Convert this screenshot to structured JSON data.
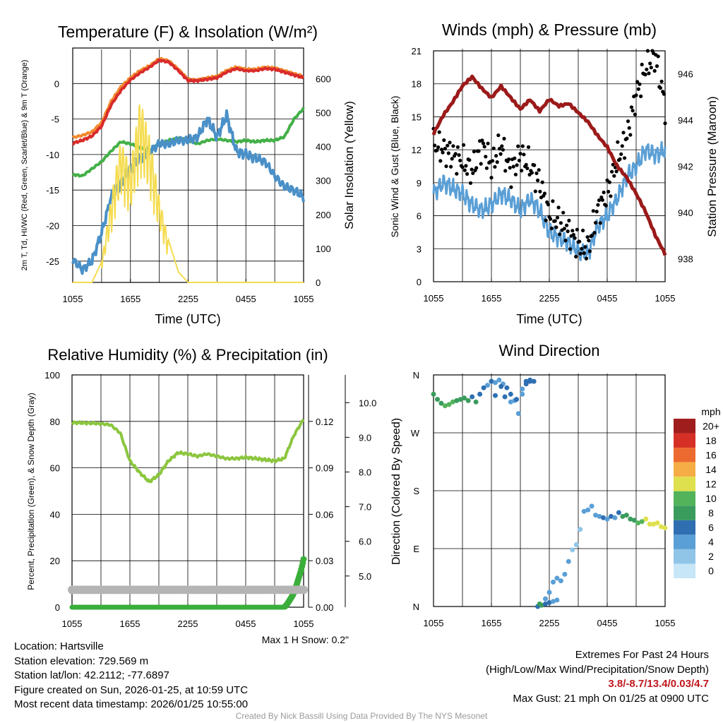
{
  "chart_data": [
    {
      "type": "line",
      "title": "Temperature (F) & Insolation (W/m²)",
      "xlabel": "Time (UTC)",
      "ylabel_left": "2m T, Td, HI/WC (Red, Green, Scarlet/Blue) & 9m T (Orange)",
      "ylabel_right": "Solar Insolation (Yellow)",
      "x_ticks": [
        "1055",
        "1655",
        "2255",
        "0455",
        "1055"
      ],
      "ylim_left": [
        -28,
        5
      ],
      "yticks_left": [
        "0",
        "-5",
        "-10",
        "-15",
        "-20",
        "-25"
      ],
      "ylim_right": [
        0,
        690
      ],
      "yticks_right": [
        "600",
        "500",
        "400",
        "300",
        "200",
        "100",
        "0"
      ],
      "series": [
        {
          "name": "9m T",
          "color": "#f28a2e",
          "axis": "left",
          "x": [
            0,
            1,
            2,
            3,
            4,
            5,
            6,
            7,
            8,
            9,
            10,
            11,
            12,
            13,
            14,
            15,
            16,
            17,
            18,
            19,
            20,
            21,
            22,
            23,
            24
          ],
          "values": [
            -7.6,
            -7.3,
            -6.8,
            -5.5,
            -2.5,
            -0.5,
            0.8,
            1.8,
            2.5,
            3.5,
            3.2,
            2.0,
            0.6,
            0.5,
            0.8,
            1.0,
            1.8,
            2.3,
            2.0,
            2.0,
            2.3,
            2.2,
            1.8,
            1.4,
            1.0
          ]
        },
        {
          "name": "2m T",
          "color": "#d92b2b",
          "axis": "left",
          "x": [
            0,
            1,
            2,
            3,
            4,
            5,
            6,
            7,
            8,
            9,
            10,
            11,
            12,
            13,
            14,
            15,
            16,
            17,
            18,
            19,
            20,
            21,
            22,
            23,
            24
          ],
          "values": [
            -8.4,
            -8.0,
            -7.4,
            -6.0,
            -3.0,
            -1.0,
            0.5,
            1.5,
            2.3,
            3.3,
            3.0,
            1.8,
            0.4,
            0.4,
            0.6,
            0.8,
            1.6,
            2.1,
            1.8,
            1.8,
            2.1,
            2.0,
            1.6,
            1.2,
            0.8
          ]
        },
        {
          "name": "Td",
          "color": "#43b047",
          "axis": "left",
          "x": [
            0,
            1,
            2,
            3,
            4,
            5,
            6,
            7,
            8,
            9,
            10,
            11,
            12,
            13,
            14,
            15,
            16,
            17,
            18,
            19,
            20,
            21,
            22,
            23,
            24
          ],
          "values": [
            -12.8,
            -13.0,
            -12.0,
            -11.0,
            -9.5,
            -8.2,
            -8.5,
            -9.0,
            -9.5,
            -8.5,
            -8.0,
            -7.7,
            -8.0,
            -8.5,
            -8.0,
            -7.8,
            -8.0,
            -8.2,
            -8.0,
            -8.2,
            -8.0,
            -8.0,
            -7.5,
            -5.0,
            -3.5
          ]
        },
        {
          "name": "WC",
          "color": "#4a90c8",
          "axis": "left",
          "x": [
            0,
            1,
            2,
            3,
            4,
            5,
            6,
            7,
            8,
            9,
            10,
            11,
            12,
            13,
            14,
            15,
            16,
            17,
            18,
            19,
            20,
            21,
            22,
            23,
            24
          ],
          "values": [
            -24.8,
            -26.2,
            -25.0,
            -21.0,
            -16.0,
            -14.0,
            -12.0,
            -10.5,
            -9.5,
            -8.5,
            -8.5,
            -8.0,
            -8.0,
            -7.5,
            -5.0,
            -7.5,
            -4.5,
            -9.5,
            -10.0,
            -10.5,
            -11.0,
            -13.0,
            -14.5,
            -15.0,
            -16.0
          ]
        },
        {
          "name": "Solar Insolation",
          "color": "#f5dc50",
          "axis": "right",
          "x": [
            0,
            1,
            2,
            3,
            4,
            5,
            6,
            7,
            8,
            9,
            10,
            11,
            12,
            13,
            14,
            15,
            16,
            17,
            18,
            19,
            20,
            21,
            22,
            23,
            24
          ],
          "values": [
            0,
            0,
            0,
            60,
            250,
            420,
            340,
            540,
            430,
            250,
            120,
            30,
            0,
            0,
            0,
            0,
            0,
            0,
            0,
            0,
            0,
            0,
            0,
            0,
            0
          ]
        }
      ]
    },
    {
      "type": "line",
      "title": "Winds (mph) & Pressure (mb)",
      "xlabel": "Time (UTC)",
      "ylabel_left": "Sonic Wind & Gust (Blue, Black)",
      "ylabel_right": "Station Pressure (Maroon)",
      "x_ticks": [
        "1055",
        "1655",
        "2255",
        "0455",
        "1055"
      ],
      "ylim_left": [
        0,
        21
      ],
      "yticks_left": [
        "0",
        "3",
        "6",
        "9",
        "12",
        "15",
        "18",
        "21"
      ],
      "ylim_right": [
        937.0,
        947.0
      ],
      "yticks_right": [
        "938",
        "940",
        "942",
        "944",
        "946"
      ],
      "series": [
        {
          "name": "Sonic Wind",
          "color": "#5a9fd6",
          "axis": "left",
          "x": [
            0,
            1,
            2,
            3,
            4,
            5,
            6,
            7,
            8,
            9,
            10,
            11,
            12,
            13,
            14,
            15,
            16,
            17,
            18,
            19,
            20,
            21,
            22,
            23,
            24
          ],
          "values": [
            8.0,
            9.0,
            8.5,
            8.0,
            7.0,
            6.5,
            7.0,
            8.0,
            7.5,
            6.5,
            7.5,
            6.5,
            4.5,
            4.0,
            3.5,
            2.8,
            2.5,
            5.0,
            6.0,
            7.5,
            9.5,
            10.5,
            12.0,
            11.5,
            12.0
          ]
        },
        {
          "name": "Gust",
          "color": "#000000",
          "axis": "left",
          "style": "dots",
          "x": [
            0,
            1,
            2,
            3,
            4,
            5,
            6,
            7,
            8,
            9,
            10,
            11,
            12,
            13,
            14,
            15,
            16,
            17,
            18,
            19,
            20,
            21,
            22,
            23,
            24
          ],
          "values": [
            12.5,
            12.0,
            11.5,
            11.0,
            10.0,
            12.5,
            10.5,
            12.5,
            10.0,
            11.5,
            10.5,
            9.0,
            6.0,
            5.5,
            4.5,
            3.5,
            3.0,
            6.5,
            8.0,
            11.0,
            13.0,
            17.0,
            19.5,
            20.5,
            16.0
          ]
        },
        {
          "name": "Station Pressure",
          "color": "#9b1a1a",
          "axis": "right",
          "x": [
            0,
            1,
            2,
            3,
            4,
            5,
            6,
            7,
            8,
            9,
            10,
            11,
            12,
            13,
            14,
            15,
            16,
            17,
            18,
            19,
            20,
            21,
            22,
            23,
            24
          ],
          "values": [
            943.4,
            944.2,
            944.8,
            945.5,
            945.9,
            945.4,
            945.0,
            945.5,
            945.0,
            944.5,
            944.9,
            944.4,
            944.9,
            944.6,
            944.7,
            944.3,
            943.9,
            943.3,
            942.8,
            942.0,
            941.5,
            940.8,
            940.0,
            939.0,
            938.2
          ]
        }
      ]
    },
    {
      "type": "line",
      "title": "Relative Humidity (%) & Precipitation (in)",
      "xlabel": "",
      "ylabel_left": "Percent, Precipitation (Green), & Snow Depth (Gray)",
      "x_ticks": [
        "1055",
        "1655",
        "2255",
        "0455",
        "1055"
      ],
      "ylim_left": [
        0,
        100
      ],
      "yticks_left": [
        "0",
        "20",
        "40",
        "60",
        "80",
        "100"
      ],
      "axis_precip": {
        "ylim": [
          0,
          0.15
        ],
        "ticks": [
          "0.00",
          "0.03",
          "0.06",
          "0.09",
          "0.12"
        ]
      },
      "axis_snow": {
        "ylim": [
          4.1,
          10.8
        ],
        "ticks": [
          "5.0",
          "6.0",
          "7.0",
          "8.0",
          "9.0",
          "10.0"
        ]
      },
      "annotation": "Max 1 H Snow: 0.2\"",
      "series": [
        {
          "name": "Relative Humidity",
          "color": "#8cc63f",
          "axis": "left",
          "x": [
            0,
            2,
            3,
            4,
            5,
            6,
            7,
            8,
            9,
            10,
            11,
            12,
            13,
            14,
            15,
            16,
            17,
            18,
            19,
            20,
            21,
            22,
            23,
            24
          ],
          "values": [
            79.5,
            79.2,
            79.0,
            78.5,
            75.0,
            63.0,
            58.0,
            54.0,
            57.0,
            63.0,
            66.5,
            66.0,
            65.0,
            66.0,
            65.0,
            64.0,
            64.0,
            64.5,
            64.0,
            63.5,
            63.0,
            64.0,
            74.0,
            81.0
          ]
        },
        {
          "name": "Precipitation",
          "color": "#3aae3a",
          "axis": "precip",
          "style": "dots",
          "x": [
            0,
            4,
            8,
            12,
            16,
            20,
            22.0,
            22.3,
            22.6,
            22.9,
            23.1,
            23.3,
            23.5,
            23.7,
            23.9,
            24.0
          ],
          "values": [
            0,
            0,
            0,
            0,
            0,
            0,
            0,
            0.002,
            0.005,
            0.008,
            0.011,
            0.015,
            0.019,
            0.023,
            0.028,
            0.031
          ]
        },
        {
          "name": "Snow Depth",
          "color": "#b4b4b4",
          "axis": "snow",
          "x": [
            0,
            24
          ],
          "values": [
            4.6,
            4.6
          ]
        }
      ]
    },
    {
      "type": "scatter",
      "title": "Wind Direction",
      "ylabel": "Direction (Colored By Speed)",
      "x_ticks": [
        "1055",
        "1655",
        "2255",
        "0455",
        "1055"
      ],
      "y_ticks": [
        "N",
        "E",
        "S",
        "W",
        "N"
      ],
      "ylim": [
        0,
        360
      ],
      "legend_title": "mph",
      "legend_labels": [
        "0",
        "2",
        "4",
        "6",
        "8",
        "10",
        "12",
        "14",
        "16",
        "18",
        "20+"
      ],
      "legend_colors": [
        "#c7e6f7",
        "#90c5e8",
        "#5a9fd6",
        "#2f6fb1",
        "#3a9c5c",
        "#52b35b",
        "#dfe04d",
        "#f6ad45",
        "#ec6a2f",
        "#d63026",
        "#a01d1d"
      ],
      "series": [
        {
          "name": "Wind Direction",
          "x": [
            0.0,
            0.4,
            0.8,
            1.2,
            1.6,
            2.0,
            2.4,
            2.8,
            3.2,
            3.6,
            4.0,
            4.4,
            4.8,
            5.2,
            5.6,
            6.0,
            6.4,
            6.8,
            7.2,
            7.6,
            8.0,
            8.4,
            8.8,
            9.2,
            9.6,
            10.0,
            10.4,
            10.8,
            11.2,
            11.6,
            12.0,
            12.4,
            12.8,
            13.2,
            13.6,
            14.0,
            14.4,
            14.8,
            15.2,
            15.6,
            16.0,
            16.4,
            16.8,
            17.2,
            17.6,
            18.0,
            18.4,
            18.8,
            19.2,
            19.6,
            20.0,
            20.4,
            20.8,
            21.2,
            21.6,
            22.0,
            22.4,
            22.8,
            23.2,
            23.6,
            24.0,
            6.4,
            7.0,
            7.4,
            8.0,
            8.6,
            9.2,
            9.6,
            10.0,
            11.0,
            11.6,
            12.0,
            12.4,
            12.8
          ],
          "values": [
            330,
            322,
            316,
            312,
            314,
            318,
            320,
            322,
            324,
            320,
            326,
            318,
            330,
            340,
            344,
            350,
            348,
            352,
            346,
            340,
            330,
            320,
            300,
            330,
            350,
            352,
            350,
            0,
            2,
            4,
            6,
            8,
            10,
            40,
            50,
            70,
            88,
            96,
            120,
            148,
            150,
            156,
            142,
            140,
            138,
            136,
            140,
            138,
            146,
            140,
            142,
            136,
            134,
            130,
            132,
            136,
            128,
            128,
            130,
            124,
            122,
            328,
            342,
            326,
            318,
            322,
            338,
            346,
            350,
            4,
            12,
            22,
            38,
            44
          ],
          "speeds": [
            7,
            8,
            8,
            10,
            10,
            9,
            8,
            7,
            8,
            7,
            6,
            7,
            6,
            5,
            4,
            5,
            4,
            3,
            4,
            5,
            5,
            4,
            3,
            4,
            5,
            6,
            6,
            5,
            8,
            6,
            5,
            3,
            3,
            4,
            3,
            3,
            2,
            2,
            2,
            3,
            3,
            4,
            3,
            4,
            5,
            4,
            5,
            4,
            6,
            7,
            7,
            8,
            8,
            9,
            10,
            11,
            12,
            11,
            12,
            12,
            11,
            6,
            5,
            6,
            4,
            5,
            3,
            5,
            6,
            7,
            4,
            3,
            3,
            3
          ]
        }
      ]
    }
  ],
  "info_left": {
    "location": "Location: Hartsville",
    "elevation": "Station elevation: 729.569 m",
    "latlon": "Station lat/lon: 42.2112; -77.6897",
    "created": "Figure created on Sun, 2026-01-25, at 10:59 UTC",
    "recent": "Most recent data timestamp: 2026/01/25 10:55:00"
  },
  "info_right": {
    "title": "Extremes For Past 24 Hours",
    "subtitle": "(High/Low/Max Wind/Precipitation/Snow Depth)",
    "values": "3.8/-8.7/13.4/0.03/4.7",
    "gust": "Max Gust: 21 mph On 01/25 at 0900 UTC"
  },
  "credit": "Created By Nick Bassill Using Data Provided By The NYS Mesonet"
}
